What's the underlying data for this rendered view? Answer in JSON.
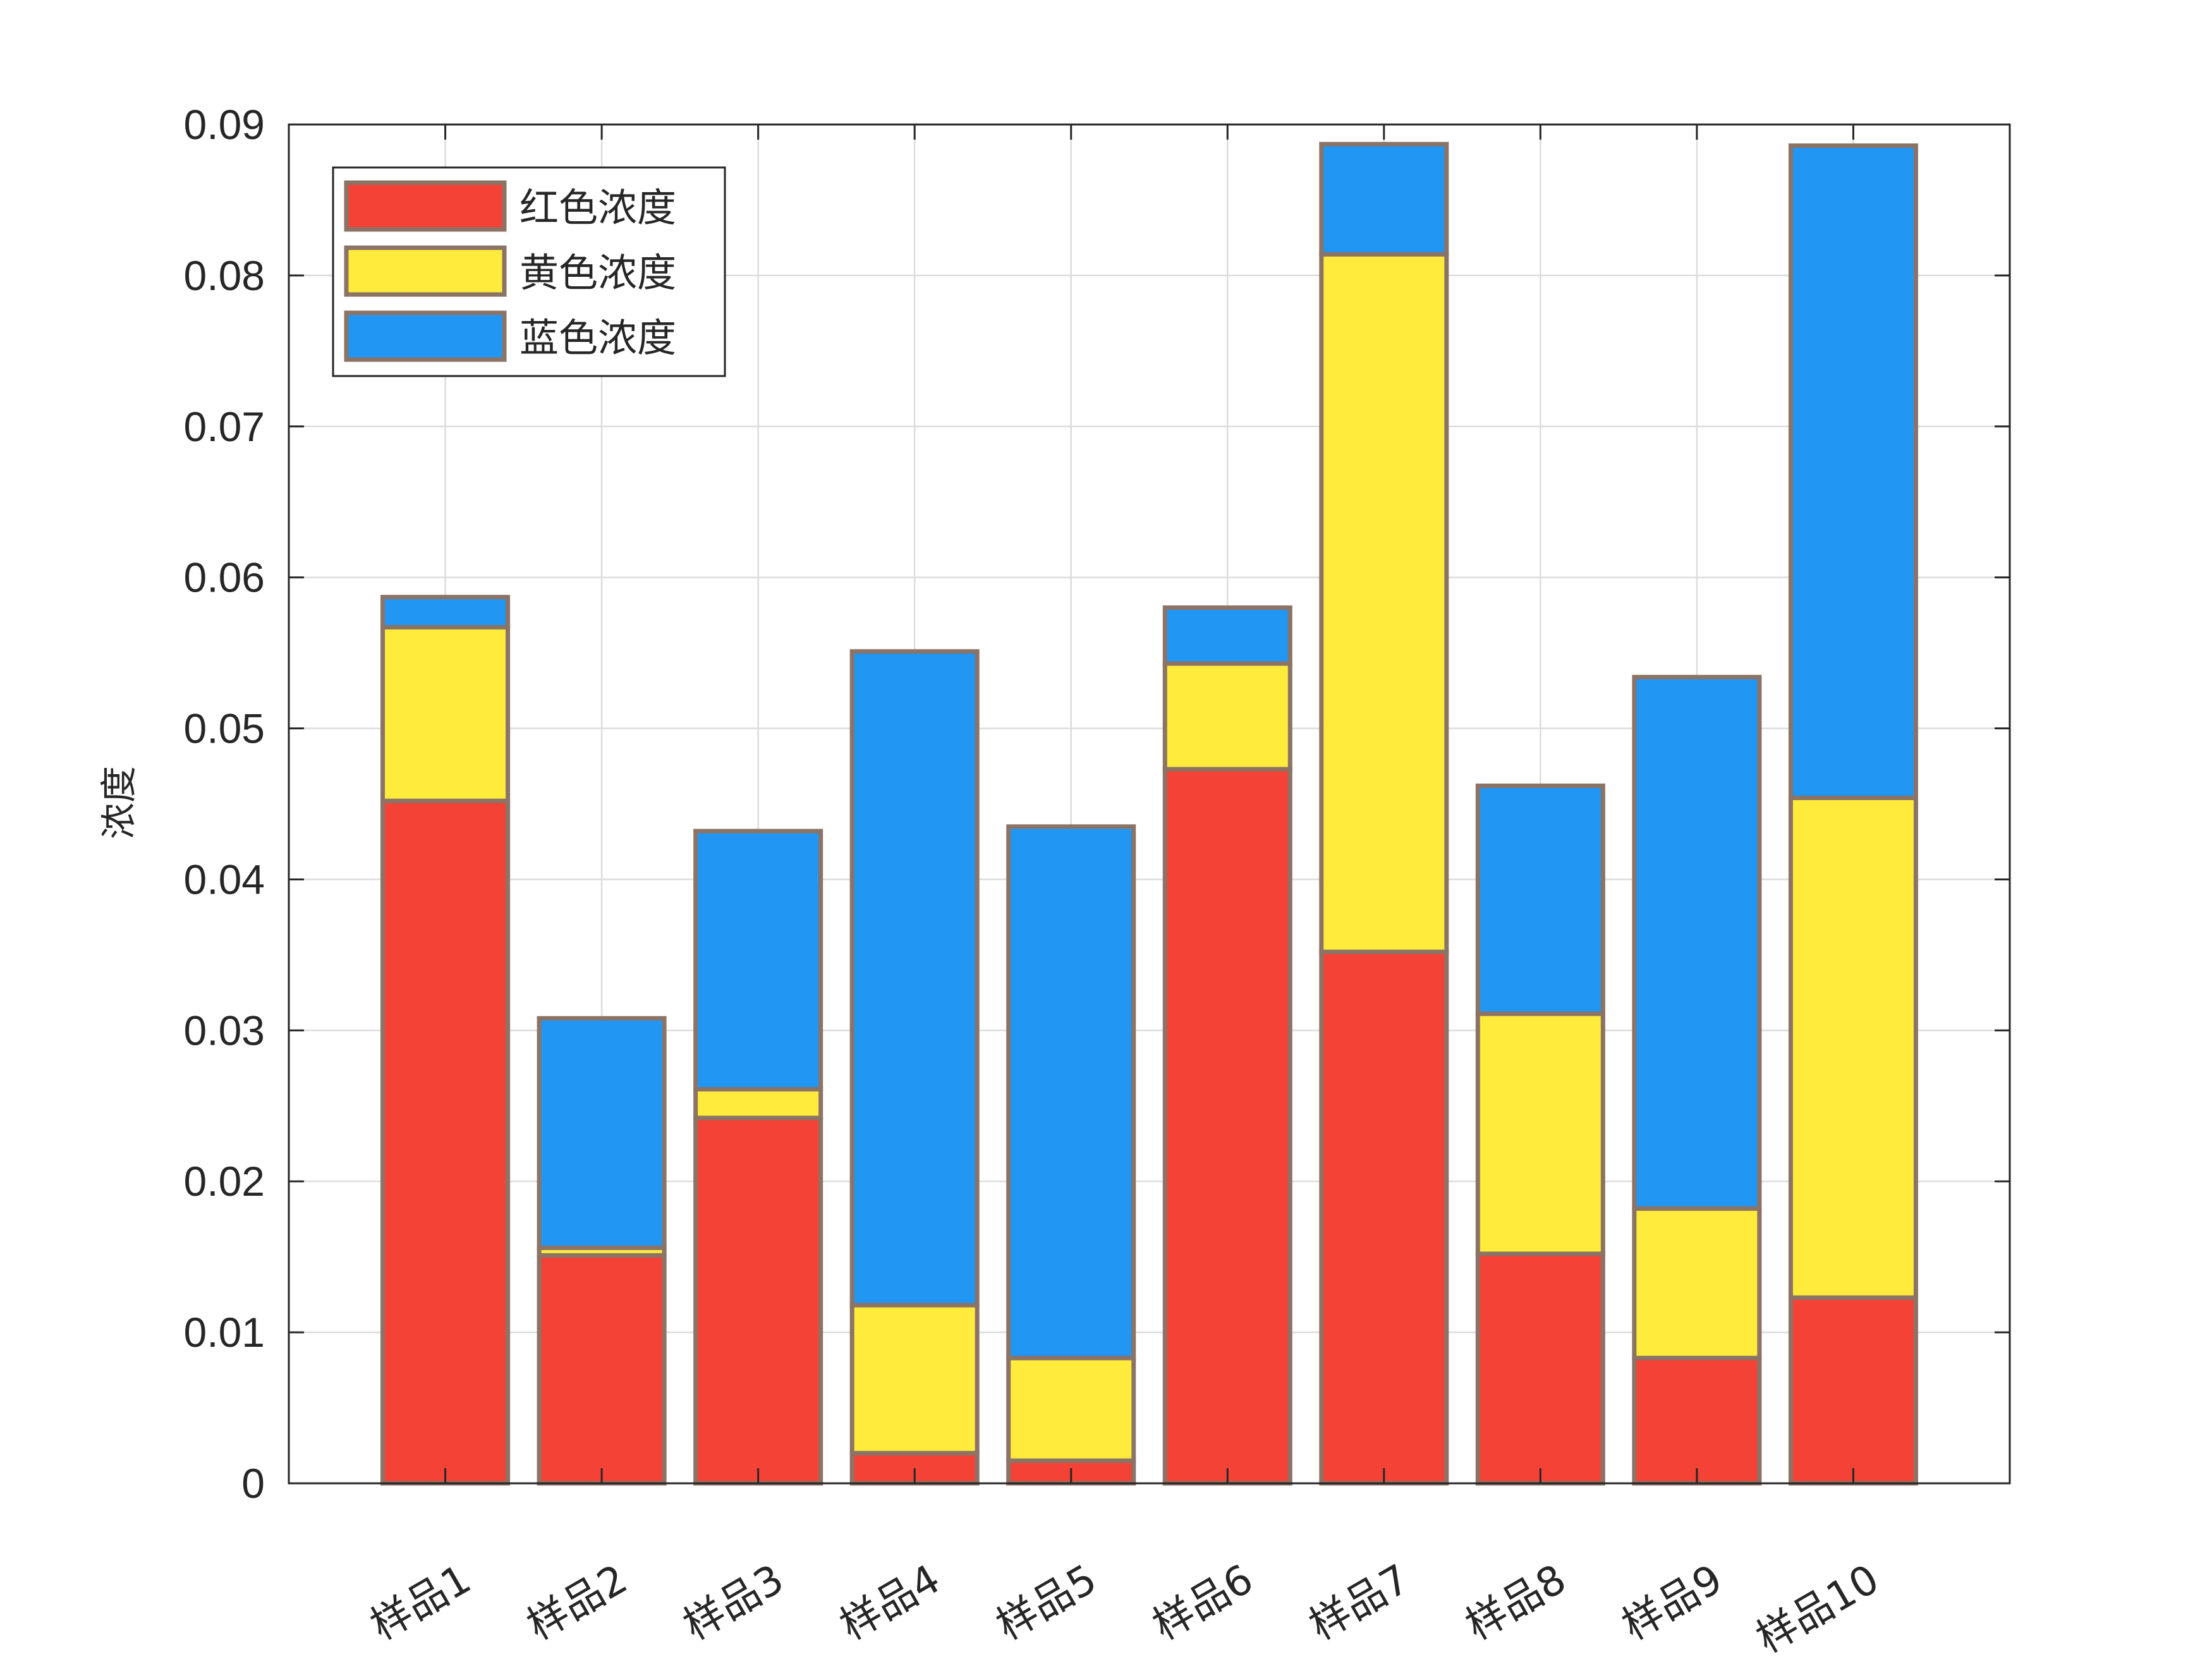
{
  "chart_data": {
    "type": "bar",
    "stacked": true,
    "title": "",
    "xlabel": "",
    "ylabel": "浓度",
    "ylim": [
      0,
      0.09
    ],
    "yticks": [
      0,
      0.01,
      0.02,
      0.03,
      0.04,
      0.05,
      0.06,
      0.07,
      0.08,
      0.09
    ],
    "ytick_labels": [
      "0",
      "0.01",
      "0.02",
      "0.03",
      "0.04",
      "0.05",
      "0.06",
      "0.07",
      "0.08",
      "0.09"
    ],
    "categories": [
      "样品1",
      "样品2",
      "样品3",
      "样品4",
      "样品5",
      "样品6",
      "样品7",
      "样品8",
      "样品9",
      "样品10"
    ],
    "grid": true,
    "legend_position": "top-left",
    "bar_edge_color": "#8B7366",
    "series": [
      {
        "name": "红色浓度",
        "color": "#F44336",
        "values": [
          0.0452,
          0.0151,
          0.0242,
          0.002,
          0.0015,
          0.0473,
          0.0352,
          0.0152,
          0.0083,
          0.0123
        ]
      },
      {
        "name": "黄色浓度",
        "color": "#FFEB3B",
        "values": [
          0.0115,
          0.0005,
          0.0019,
          0.0098,
          0.0068,
          0.007,
          0.0462,
          0.0159,
          0.0099,
          0.0331
        ]
      },
      {
        "name": "蓝色浓度",
        "color": "#2196F3",
        "values": [
          0.002,
          0.0152,
          0.0171,
          0.0433,
          0.0352,
          0.0037,
          0.0073,
          0.0151,
          0.0352,
          0.0432
        ]
      }
    ]
  }
}
